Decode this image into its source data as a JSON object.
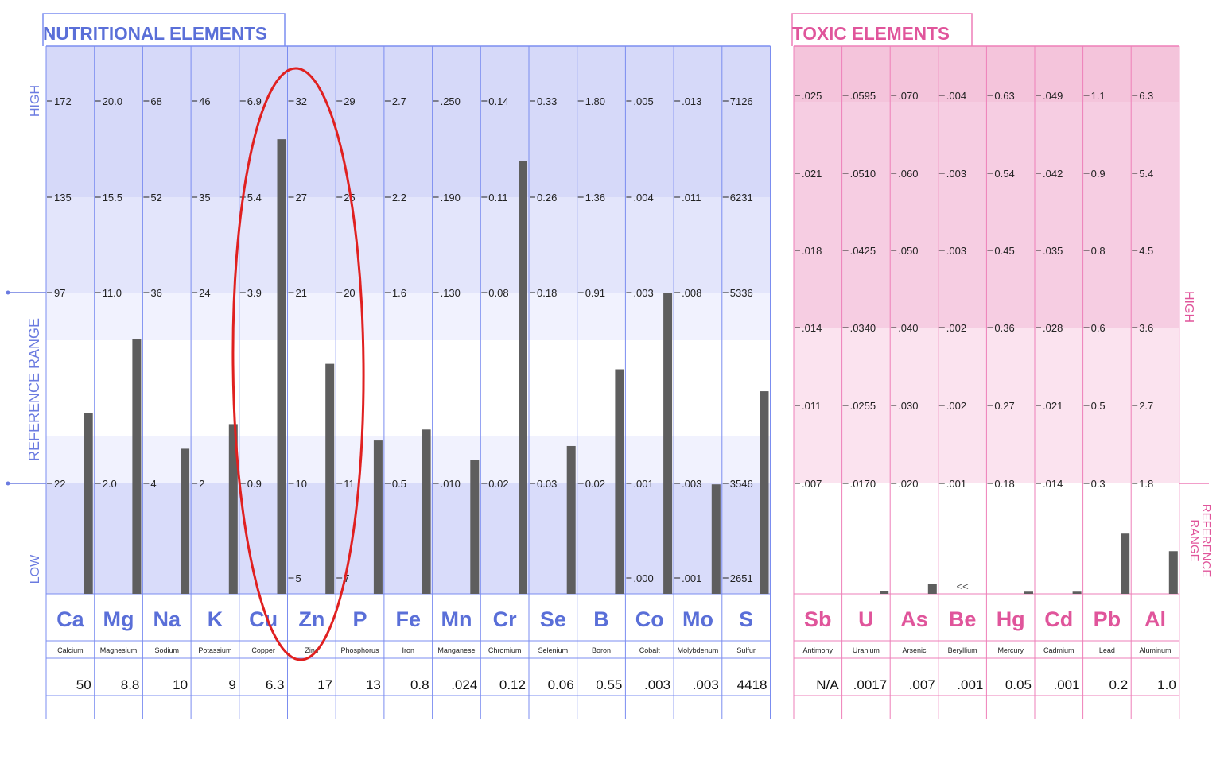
{
  "chart_data": [
    {
      "type": "bar",
      "title": "NUTRITIONAL ELEMENTS",
      "band_labels": {
        "high": "HIGH",
        "reference": "REFERENCE RANGE",
        "low": "LOW"
      },
      "colors": {
        "accent": "#5a6fd8",
        "border": "#7b8df0",
        "band_strong": "#d6d9f9",
        "band_light": "#eceefd",
        "bar": "#5e5e5e"
      },
      "elements": [
        {
          "symbol": "Ca",
          "name": "Calcium",
          "result": "50",
          "ticks": [
            "172",
            "135",
            "97",
            "",
            "22",
            ""
          ],
          "level": 0.33
        },
        {
          "symbol": "Mg",
          "name": "Magnesium",
          "result": "8.8",
          "ticks": [
            "20.0",
            "15.5",
            "11.0",
            "",
            "2.0",
            ""
          ],
          "level": 0.465
        },
        {
          "symbol": "Na",
          "name": "Sodium",
          "result": "10",
          "ticks": [
            "68",
            "52",
            "36",
            "",
            "4",
            ""
          ],
          "level": 0.265
        },
        {
          "symbol": "K",
          "name": "Potassium",
          "result": "9",
          "ticks": [
            "46",
            "35",
            "24",
            "",
            "2",
            ""
          ],
          "level": 0.31
        },
        {
          "symbol": "Cu",
          "name": "Copper",
          "result": "6.3",
          "ticks": [
            "6.9",
            "5.4",
            "3.9",
            "",
            "0.9",
            ""
          ],
          "level": 0.83
        },
        {
          "symbol": "Zn",
          "name": "Zinc",
          "result": "17",
          "ticks": [
            "32",
            "27",
            "21",
            "",
            "10",
            "5"
          ],
          "level": 0.42
        },
        {
          "symbol": "P",
          "name": "Phosphorus",
          "result": "13",
          "ticks": [
            "29",
            "25",
            "20",
            "",
            "11",
            "7"
          ],
          "level": 0.28
        },
        {
          "symbol": "Fe",
          "name": "Iron",
          "result": "0.8",
          "ticks": [
            "2.7",
            "2.2",
            "1.6",
            "",
            "0.5",
            ""
          ],
          "level": 0.3
        },
        {
          "symbol": "Mn",
          "name": "Manganese",
          "result": ".024",
          "ticks": [
            ".250",
            ".190",
            ".130",
            "",
            ".010",
            ""
          ],
          "level": 0.245
        },
        {
          "symbol": "Cr",
          "name": "Chromium",
          "result": "0.12",
          "ticks": [
            "0.14",
            "0.11",
            "0.08",
            "",
            "0.02",
            ""
          ],
          "level": 0.79
        },
        {
          "symbol": "Se",
          "name": "Selenium",
          "result": "0.06",
          "ticks": [
            "0.33",
            "0.26",
            "0.18",
            "",
            "0.03",
            ""
          ],
          "level": 0.27
        },
        {
          "symbol": "B",
          "name": "Boron",
          "result": "0.55",
          "ticks": [
            "1.80",
            "1.36",
            "0.91",
            "",
            "0.02",
            ""
          ],
          "level": 0.41
        },
        {
          "symbol": "Co",
          "name": "Cobalt",
          "result": ".003",
          "ticks": [
            ".005",
            ".004",
            ".003",
            "",
            ".001",
            ".000"
          ],
          "level": 0.55
        },
        {
          "symbol": "Mo",
          "name": "Molybdenum",
          "result": ".003",
          "ticks": [
            ".013",
            ".011",
            ".008",
            "",
            ".003",
            ".001"
          ],
          "level": 0.2
        },
        {
          "symbol": "S",
          "name": "Sulfur",
          "result": "4418",
          "ticks": [
            "7126",
            "6231",
            "5336",
            "",
            "3546",
            "2651"
          ],
          "level": 0.37
        }
      ]
    },
    {
      "type": "bar",
      "title": "TOXIC ELEMENTS",
      "band_labels": {
        "high": "HIGH",
        "reference": "REFERENCE RANGE"
      },
      "colors": {
        "accent": "#e0559b",
        "border": "#ee7fb8",
        "band_strong": "#f6cde2",
        "band_light": "#fbe3ef",
        "bar": "#5e5e5e"
      },
      "elements": [
        {
          "symbol": "Sb",
          "name": "Antimony",
          "result": "N/A",
          "ticks": [
            ".025",
            ".021",
            ".018",
            ".014",
            ".011",
            ".007"
          ],
          "level": 0.0,
          "marker": ""
        },
        {
          "symbol": "U",
          "name": "Uranium",
          "result": ".0017",
          "ticks": [
            ".0595",
            ".0510",
            ".0425",
            ".0340",
            ".0255",
            ".0170"
          ],
          "level": 0.005,
          "marker": ""
        },
        {
          "symbol": "As",
          "name": "Arsenic",
          "result": ".007",
          "ticks": [
            ".070",
            ".060",
            ".050",
            ".040",
            ".030",
            ".020"
          ],
          "level": 0.018,
          "marker": ""
        },
        {
          "symbol": "Be",
          "name": "Beryllium",
          "result": ".001",
          "ticks": [
            ".004",
            ".003",
            ".003",
            ".002",
            ".002",
            ".001"
          ],
          "level": 0.0,
          "marker": "<<"
        },
        {
          "symbol": "Hg",
          "name": "Mercury",
          "result": "0.05",
          "ticks": [
            "0.63",
            "0.54",
            "0.45",
            "0.36",
            "0.27",
            "0.18"
          ],
          "level": 0.004,
          "marker": ""
        },
        {
          "symbol": "Cd",
          "name": "Cadmium",
          "result": ".001",
          "ticks": [
            ".049",
            ".042",
            ".035",
            ".028",
            ".021",
            ".014"
          ],
          "level": 0.004,
          "marker": ""
        },
        {
          "symbol": "Pb",
          "name": "Lead",
          "result": "0.2",
          "ticks": [
            "1.1",
            "0.9",
            "0.8",
            "0.6",
            "0.5",
            "0.3"
          ],
          "level": 0.11,
          "marker": ""
        },
        {
          "symbol": "Al",
          "name": "Aluminum",
          "result": "1.0",
          "ticks": [
            "6.3",
            "5.4",
            "4.5",
            "3.6",
            "2.7",
            "1.8"
          ],
          "level": 0.078,
          "marker": ""
        }
      ]
    }
  ],
  "annotation": {
    "type": "ellipse",
    "color": "#e02020",
    "highlights": [
      "Cu",
      "Zn"
    ]
  }
}
